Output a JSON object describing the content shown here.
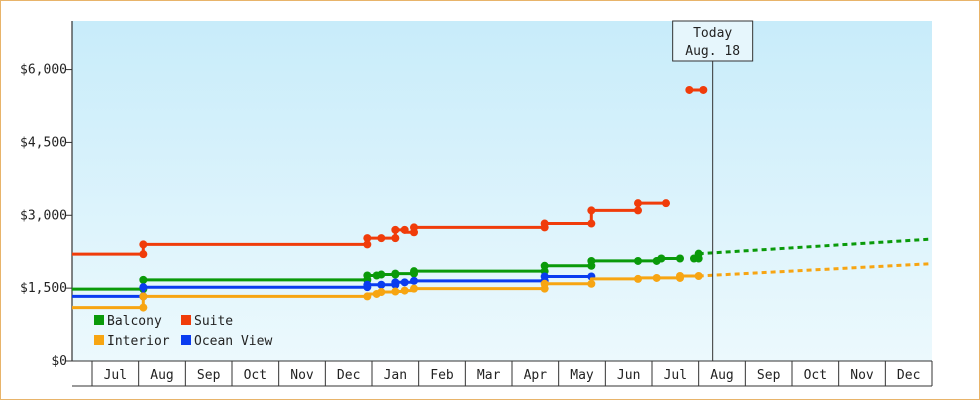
{
  "chart_data": {
    "type": "line",
    "title": "",
    "xlabel": "",
    "ylabel": "",
    "y_tick_labels": [
      "$0",
      "$1,500",
      "$3,000",
      "$4,500",
      "$6,000"
    ],
    "y_ticks": [
      0,
      1500,
      3000,
      4500,
      6000
    ],
    "ylim": [
      0,
      7000
    ],
    "month_labels": [
      "Jul",
      "Aug",
      "Sep",
      "Oct",
      "Nov",
      "Dec",
      "Jan",
      "Feb",
      "Mar",
      "Apr",
      "May",
      "Jun",
      "Jul",
      "Aug",
      "Sep",
      "Oct",
      "Nov",
      "Dec"
    ],
    "x_domain": [
      0,
      18
    ],
    "today": {
      "label": "Today",
      "date": "Aug. 18",
      "x": 13.3
    },
    "grid": false,
    "background_gradient": [
      "#c8ecfa",
      "#ecf9fd"
    ],
    "legend_position": "bottom-left",
    "series": [
      {
        "name": "Suite",
        "color": "#f03c0a",
        "segments": [
          [
            [
              -0.5,
              2200
            ],
            [
              1.1,
              2200
            ],
            [
              1.1,
              2400
            ],
            [
              5.9,
              2400
            ],
            [
              5.9,
              2530
            ],
            [
              6.2,
              2530
            ],
            [
              6.2,
              2530
            ],
            [
              6.5,
              2530
            ],
            [
              6.5,
              2700
            ],
            [
              6.7,
              2700
            ],
            [
              6.7,
              2650
            ],
            [
              6.9,
              2650
            ],
            [
              6.9,
              2750
            ],
            [
              9.7,
              2750
            ],
            [
              9.7,
              2830
            ],
            [
              10.7,
              2830
            ],
            [
              10.7,
              3100
            ],
            [
              11.7,
              3100
            ],
            [
              11.7,
              3250
            ],
            [
              12.3,
              3250
            ]
          ],
          [
            [
              12.8,
              5580
            ],
            [
              13.1,
              5580
            ]
          ]
        ],
        "markers": [
          [
            -0.5,
            2200
          ],
          [
            1.1,
            2200
          ],
          [
            1.1,
            2400
          ],
          [
            5.9,
            2400
          ],
          [
            5.9,
            2530
          ],
          [
            6.2,
            2530
          ],
          [
            6.5,
            2530
          ],
          [
            6.5,
            2700
          ],
          [
            6.7,
            2700
          ],
          [
            6.9,
            2650
          ],
          [
            6.9,
            2750
          ],
          [
            9.7,
            2750
          ],
          [
            9.7,
            2830
          ],
          [
            10.7,
            2830
          ],
          [
            10.7,
            3100
          ],
          [
            11.7,
            3100
          ],
          [
            11.7,
            3250
          ],
          [
            12.3,
            3250
          ],
          [
            12.8,
            5580
          ],
          [
            13.1,
            5580
          ]
        ]
      },
      {
        "name": "Balcony",
        "color": "#0a9a0a",
        "segments": [
          [
            [
              -0.5,
              1480
            ],
            [
              1.1,
              1480
            ],
            [
              1.1,
              1670
            ],
            [
              5.9,
              1670
            ],
            [
              5.9,
              1760
            ],
            [
              6.1,
              1760
            ],
            [
              6.1,
              1780
            ],
            [
              6.5,
              1780
            ],
            [
              6.5,
              1800
            ],
            [
              6.9,
              1800
            ],
            [
              6.9,
              1850
            ],
            [
              9.7,
              1850
            ],
            [
              9.7,
              1960
            ],
            [
              10.7,
              1960
            ],
            [
              10.7,
              2060
            ],
            [
              12.1,
              2060
            ],
            [
              12.1,
              2110
            ],
            [
              12.6,
              2110
            ]
          ],
          [
            [
              12.9,
              2110
            ],
            [
              13.0,
              2110
            ],
            [
              13.0,
              2210
            ]
          ]
        ],
        "projection": [
          [
            13.0,
            2210
          ],
          [
            18.5,
            2540
          ]
        ],
        "markers": [
          [
            -0.5,
            1480
          ],
          [
            1.1,
            1480
          ],
          [
            1.1,
            1670
          ],
          [
            5.9,
            1670
          ],
          [
            5.9,
            1760
          ],
          [
            6.1,
            1760
          ],
          [
            6.2,
            1780
          ],
          [
            6.5,
            1780
          ],
          [
            6.5,
            1800
          ],
          [
            6.9,
            1800
          ],
          [
            6.9,
            1850
          ],
          [
            9.7,
            1850
          ],
          [
            9.7,
            1960
          ],
          [
            10.7,
            1960
          ],
          [
            10.7,
            2060
          ],
          [
            11.7,
            2060
          ],
          [
            12.1,
            2060
          ],
          [
            12.2,
            2110
          ],
          [
            12.6,
            2110
          ],
          [
            12.9,
            2110
          ],
          [
            13.0,
            2110
          ],
          [
            13.0,
            2210
          ]
        ]
      },
      {
        "name": "Ocean View",
        "color": "#0a3cf0",
        "segments": [
          [
            [
              -0.5,
              1330
            ],
            [
              1.1,
              1330
            ],
            [
              1.1,
              1520
            ],
            [
              5.9,
              1520
            ],
            [
              5.9,
              1570
            ],
            [
              6.5,
              1570
            ],
            [
              6.5,
              1620
            ],
            [
              6.9,
              1620
            ],
            [
              6.9,
              1650
            ],
            [
              9.7,
              1650
            ],
            [
              9.7,
              1740
            ],
            [
              10.7,
              1740
            ]
          ]
        ],
        "markers": [
          [
            -0.5,
            1330
          ],
          [
            1.1,
            1330
          ],
          [
            1.1,
            1520
          ],
          [
            5.9,
            1520
          ],
          [
            5.9,
            1570
          ],
          [
            6.2,
            1570
          ],
          [
            6.5,
            1570
          ],
          [
            6.5,
            1620
          ],
          [
            6.7,
            1620
          ],
          [
            6.9,
            1650
          ],
          [
            9.7,
            1650
          ],
          [
            9.7,
            1740
          ],
          [
            10.7,
            1740
          ]
        ]
      },
      {
        "name": "Interior",
        "color": "#f7a512",
        "segments": [
          [
            [
              -0.5,
              1100
            ],
            [
              1.1,
              1100
            ],
            [
              1.1,
              1330
            ],
            [
              5.9,
              1330
            ],
            [
              5.9,
              1380
            ],
            [
              6.1,
              1380
            ],
            [
              6.1,
              1420
            ],
            [
              6.5,
              1420
            ],
            [
              6.5,
              1430
            ],
            [
              6.7,
              1430
            ],
            [
              6.7,
              1450
            ],
            [
              6.9,
              1450
            ],
            [
              6.9,
              1490
            ],
            [
              9.7,
              1490
            ],
            [
              9.7,
              1590
            ],
            [
              10.7,
              1590
            ],
            [
              10.7,
              1690
            ],
            [
              11.7,
              1690
            ],
            [
              11.7,
              1710
            ],
            [
              12.6,
              1710
            ],
            [
              12.6,
              1750
            ],
            [
              13.0,
              1750
            ]
          ]
        ],
        "projection": [
          [
            13.0,
            1750
          ],
          [
            18.5,
            2030
          ]
        ],
        "markers": [
          [
            -0.5,
            1100
          ],
          [
            1.1,
            1100
          ],
          [
            1.1,
            1330
          ],
          [
            5.9,
            1330
          ],
          [
            6.1,
            1380
          ],
          [
            6.2,
            1420
          ],
          [
            6.5,
            1430
          ],
          [
            6.7,
            1450
          ],
          [
            6.9,
            1490
          ],
          [
            9.7,
            1490
          ],
          [
            9.7,
            1590
          ],
          [
            10.7,
            1590
          ],
          [
            11.7,
            1690
          ],
          [
            12.1,
            1710
          ],
          [
            12.6,
            1710
          ],
          [
            12.6,
            1750
          ],
          [
            13.0,
            1750
          ]
        ]
      }
    ],
    "legend": [
      {
        "name": "Balcony",
        "color": "#0a9a0a"
      },
      {
        "name": "Suite",
        "color": "#f03c0a"
      },
      {
        "name": "Interior",
        "color": "#f7a512"
      },
      {
        "name": "Ocean View",
        "color": "#0a3cf0"
      }
    ]
  }
}
